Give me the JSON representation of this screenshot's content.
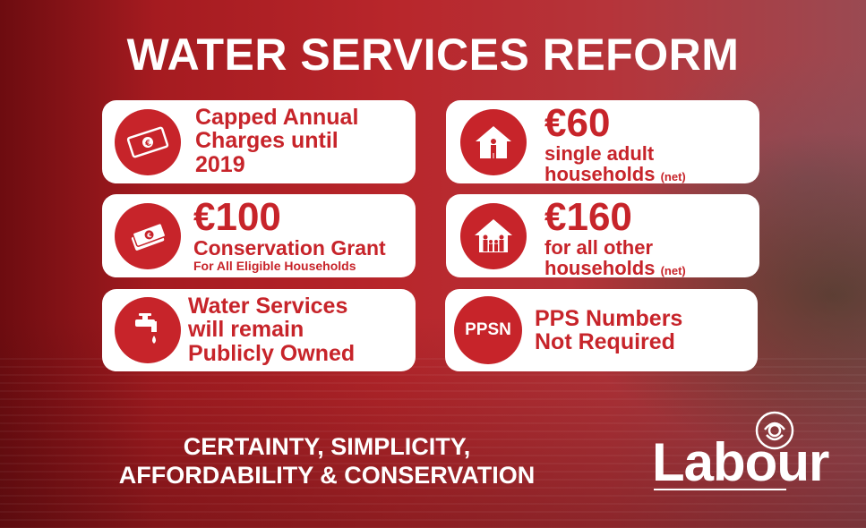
{
  "title": "WATER SERVICES REFORM",
  "cards": {
    "capped": {
      "lines": [
        "Capped Annual",
        "Charges until",
        "2019"
      ],
      "icon": "euro-banknote-icon"
    },
    "grant": {
      "amount": "€100",
      "label": "Conservation Grant",
      "sub": "For All Eligible Households",
      "icon": "euro-money-stack-icon"
    },
    "public": {
      "lines": [
        "Water Services",
        "will remain",
        "Publicly Owned"
      ],
      "icon": "water-tap-icon"
    },
    "single": {
      "amount": "€60",
      "line1": "single adult",
      "line2": "households",
      "net": "(net)",
      "icon": "house-single-person-icon"
    },
    "other": {
      "amount": "€160",
      "line1": "for all other",
      "line2": "households",
      "net": "(net)",
      "icon": "house-family-icon"
    },
    "ppsn": {
      "badge": "PPSN",
      "lines": [
        "PPS Numbers",
        "Not Required"
      ]
    }
  },
  "footer": {
    "line1": "CERTAINTY, SIMPLICITY,",
    "line2": "AFFORDABILITY & CONSERVATION"
  },
  "logo": {
    "text": "Labour",
    "icon": "rose-icon"
  },
  "colors": {
    "brand_red": "#c7242a",
    "white": "#ffffff"
  }
}
